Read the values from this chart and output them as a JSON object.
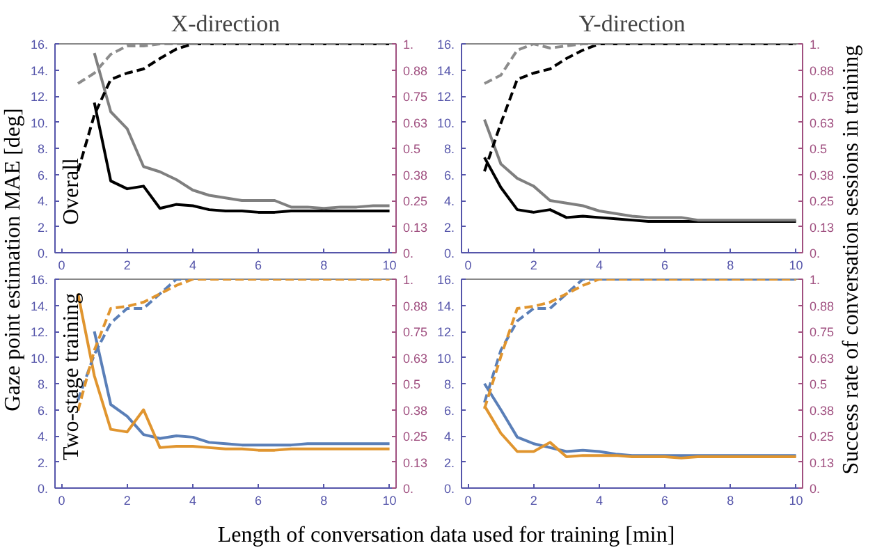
{
  "chart_data": [
    {
      "type": "line",
      "title": "X-direction",
      "ylabel": "Gaze point estimation MAE [deg]",
      "annotations": [
        "Overall"
      ],
      "x": [
        0.5,
        1,
        1.5,
        2,
        2.5,
        3,
        3.5,
        4,
        4.5,
        5,
        5.5,
        6,
        6.5,
        7,
        7.5,
        8,
        8.5,
        9,
        9.5,
        10
      ],
      "xlim": [
        -0.2,
        10.2
      ],
      "xticks": [
        0,
        2,
        4,
        6,
        8,
        10
      ],
      "ylim": [
        0,
        16
      ],
      "yticks": [
        {
          "value": 0,
          "label": "0."
        },
        {
          "value": 2,
          "label": "2."
        },
        {
          "value": 4,
          "label": "4."
        },
        {
          "value": 6,
          "label": "6."
        },
        {
          "value": 8,
          "label": "8."
        },
        {
          "value": 10,
          "label": "10."
        },
        {
          "value": 12,
          "label": "12."
        },
        {
          "value": 14,
          "label": "14."
        },
        {
          "value": 16,
          "label": "16."
        }
      ],
      "y2lim": [
        0,
        1
      ],
      "y2ticks": [
        {
          "value": 0,
          "label": "0."
        },
        {
          "value": 0.125,
          "label": "0.13"
        },
        0.25,
        {
          "value": 0.375,
          "label": "0.38"
        },
        0.5,
        {
          "value": 0.625,
          "label": "0.63"
        },
        0.75,
        {
          "value": 0.875,
          "label": "0.88"
        },
        {
          "value": 1,
          "label": "1."
        }
      ],
      "grid": false,
      "series": [
        {
          "color": "#000000",
          "line_style": "solid",
          "values": [
            null,
            11.5,
            5.5,
            4.9,
            5.1,
            3.4,
            3.7,
            3.6,
            3.3,
            3.2,
            3.2,
            3.1,
            3.1,
            3.2,
            3.2,
            3.2,
            3.2,
            3.2,
            3.2,
            3.2
          ]
        },
        {
          "color": "#7f7f7f",
          "line_style": "solid",
          "values": [
            null,
            15.3,
            10.8,
            9.5,
            6.6,
            6.2,
            5.6,
            4.8,
            4.4,
            4.2,
            4.0,
            4.0,
            4.0,
            3.5,
            3.5,
            3.4,
            3.5,
            3.5,
            3.6,
            3.6
          ]
        },
        {
          "color": "#000000",
          "line_style": "dashed",
          "axis": "y2",
          "values": [
            0.39,
            0.66,
            0.83,
            0.86,
            0.88,
            0.93,
            0.975,
            1,
            1,
            1,
            1,
            1,
            1,
            1,
            1,
            1,
            1,
            1,
            1,
            1
          ]
        },
        {
          "color": "#8c8c8c",
          "line_style": "dashed",
          "axis": "y2",
          "values": [
            0.81,
            0.86,
            0.95,
            0.99,
            0.99,
            1,
            1,
            1,
            1,
            1,
            1,
            1,
            1,
            1,
            1,
            1,
            1,
            1,
            1,
            1
          ]
        }
      ]
    },
    {
      "type": "line",
      "title": "Y-direction",
      "y2label": "Success rate of conversation sessions in training",
      "x": [
        0.5,
        1,
        1.5,
        2,
        2.5,
        3,
        3.5,
        4,
        4.5,
        5,
        5.5,
        6,
        6.5,
        7,
        7.5,
        8,
        8.5,
        9,
        9.5,
        10
      ],
      "xlim": [
        -0.2,
        10.2
      ],
      "xticks": [
        0,
        2,
        4,
        6,
        8,
        10
      ],
      "ylim": [
        0,
        16
      ],
      "yticks": [
        {
          "value": 0,
          "label": "0."
        },
        {
          "value": 2,
          "label": "2."
        },
        {
          "value": 4,
          "label": "4."
        },
        {
          "value": 6,
          "label": "6."
        },
        {
          "value": 8,
          "label": "8."
        },
        {
          "value": 10,
          "label": "10."
        },
        {
          "value": 12,
          "label": "12."
        },
        {
          "value": 14,
          "label": "14."
        },
        {
          "value": 16,
          "label": "16."
        }
      ],
      "y2lim": [
        0,
        1
      ],
      "y2ticks": [
        {
          "value": 0,
          "label": "0."
        },
        {
          "value": 0.125,
          "label": "0.13"
        },
        0.25,
        {
          "value": 0.375,
          "label": "0.38"
        },
        0.5,
        {
          "value": 0.625,
          "label": "0.63"
        },
        0.75,
        {
          "value": 0.875,
          "label": "0.88"
        },
        {
          "value": 1,
          "label": "1."
        }
      ],
      "grid": false,
      "series": [
        {
          "color": "#000000",
          "line_style": "solid",
          "values": [
            7.3,
            5.0,
            3.3,
            3.1,
            3.3,
            2.7,
            2.8,
            2.7,
            2.6,
            2.5,
            2.4,
            2.4,
            2.4,
            2.4,
            2.4,
            2.4,
            2.4,
            2.4,
            2.4,
            2.4
          ]
        },
        {
          "color": "#7f7f7f",
          "line_style": "solid",
          "values": [
            10.2,
            6.8,
            5.7,
            5.1,
            4.0,
            3.8,
            3.6,
            3.2,
            3.0,
            2.8,
            2.7,
            2.7,
            2.7,
            2.5,
            2.5,
            2.5,
            2.5,
            2.5,
            2.5,
            2.5
          ]
        },
        {
          "color": "#000000",
          "line_style": "dashed",
          "axis": "y2",
          "values": [
            0.39,
            0.62,
            0.83,
            0.86,
            0.88,
            0.93,
            0.97,
            1,
            1,
            1,
            1,
            1,
            1,
            1,
            1,
            1,
            1,
            1,
            1,
            1
          ]
        },
        {
          "color": "#8c8c8c",
          "line_style": "dashed",
          "axis": "y2",
          "values": [
            0.81,
            0.85,
            0.97,
            1,
            0.98,
            0.99,
            1,
            1,
            1,
            1,
            1,
            1,
            1,
            1,
            1,
            1,
            1,
            1,
            1,
            1
          ]
        }
      ]
    },
    {
      "type": "line",
      "xlabel": "Length of conversation data used for training [min]",
      "annotations": [
        "Two-stage training"
      ],
      "x": [
        0.5,
        1,
        1.5,
        2,
        2.5,
        3,
        3.5,
        4,
        4.5,
        5,
        5.5,
        6,
        6.5,
        7,
        7.5,
        8,
        8.5,
        9,
        9.5,
        10
      ],
      "xlim": [
        -0.2,
        10.2
      ],
      "xticks": [
        0,
        2,
        4,
        6,
        8,
        10
      ],
      "ylim": [
        0,
        16
      ],
      "yticks": [
        {
          "value": 0,
          "label": "0."
        },
        {
          "value": 2,
          "label": "2."
        },
        {
          "value": 4,
          "label": "4."
        },
        {
          "value": 6,
          "label": "6."
        },
        {
          "value": 8,
          "label": "8."
        },
        {
          "value": 10,
          "label": "10."
        },
        {
          "value": 12,
          "label": "12."
        },
        {
          "value": 14,
          "label": "14."
        },
        {
          "value": 16,
          "label": "16."
        }
      ],
      "y2lim": [
        0,
        1
      ],
      "y2ticks": [
        {
          "value": 0,
          "label": "0."
        },
        {
          "value": 0.125,
          "label": "0.13"
        },
        0.25,
        {
          "value": 0.375,
          "label": "0.38"
        },
        0.5,
        {
          "value": 0.625,
          "label": "0.63"
        },
        0.75,
        {
          "value": 0.875,
          "label": "0.88"
        },
        {
          "value": 1,
          "label": "1."
        }
      ],
      "grid": false,
      "series": [
        {
          "color": "#5a7fb8",
          "line_style": "solid",
          "values": [
            null,
            12.0,
            6.4,
            5.5,
            4.1,
            3.8,
            4.0,
            3.9,
            3.5,
            3.4,
            3.3,
            3.3,
            3.3,
            3.3,
            3.4,
            3.4,
            3.4,
            3.4,
            3.4,
            3.4
          ]
        },
        {
          "color": "#e0952f",
          "line_style": "solid",
          "values": [
            14.9,
            8.6,
            4.5,
            4.3,
            6.0,
            3.1,
            3.2,
            3.2,
            3.1,
            3.0,
            3.0,
            2.9,
            2.9,
            3.0,
            3.0,
            3.0,
            3.0,
            3.0,
            3.0,
            3.0
          ]
        },
        {
          "color": "#5a7fb8",
          "line_style": "dashed",
          "axis": "y2",
          "values": [
            0.42,
            0.64,
            0.79,
            0.86,
            0.86,
            0.93,
            1,
            1,
            null,
            null,
            null,
            null,
            null,
            null,
            null,
            null,
            null,
            null,
            null,
            null
          ]
        },
        {
          "color": "#e0952f",
          "line_style": "dashed",
          "axis": "y2",
          "values": [
            0.37,
            0.66,
            0.86,
            0.87,
            0.89,
            0.93,
            0.97,
            1,
            1,
            1,
            1,
            1,
            1,
            1,
            1,
            1,
            1,
            1,
            1,
            1
          ]
        }
      ]
    },
    {
      "type": "line",
      "x": [
        0.5,
        1,
        1.5,
        2,
        2.5,
        3,
        3.5,
        4,
        4.5,
        5,
        5.5,
        6,
        6.5,
        7,
        7.5,
        8,
        8.5,
        9,
        9.5,
        10
      ],
      "xlim": [
        -0.2,
        10.2
      ],
      "xticks": [
        0,
        2,
        4,
        6,
        8,
        10
      ],
      "ylim": [
        0,
        16
      ],
      "yticks": [
        {
          "value": 0,
          "label": "0."
        },
        {
          "value": 2,
          "label": "2."
        },
        {
          "value": 4,
          "label": "4."
        },
        {
          "value": 6,
          "label": "6."
        },
        {
          "value": 8,
          "label": "8."
        },
        {
          "value": 10,
          "label": "10."
        },
        {
          "value": 12,
          "label": "12."
        },
        {
          "value": 14,
          "label": "14."
        },
        {
          "value": 16,
          "label": "16."
        }
      ],
      "y2lim": [
        0,
        1
      ],
      "y2ticks": [
        {
          "value": 0,
          "label": "0."
        },
        {
          "value": 0.125,
          "label": "0.13"
        },
        0.25,
        {
          "value": 0.375,
          "label": "0.38"
        },
        0.5,
        {
          "value": 0.625,
          "label": "0.63"
        },
        0.75,
        {
          "value": 0.875,
          "label": "0.88"
        },
        {
          "value": 1,
          "label": "1."
        }
      ],
      "grid": false,
      "series": [
        {
          "color": "#5a7fb8",
          "line_style": "solid",
          "values": [
            8.0,
            6.0,
            3.9,
            3.4,
            3.1,
            2.8,
            2.9,
            2.8,
            2.6,
            2.5,
            2.5,
            2.5,
            2.5,
            2.5,
            2.5,
            2.5,
            2.5,
            2.5,
            2.5,
            2.5
          ]
        },
        {
          "color": "#e0952f",
          "line_style": "solid",
          "values": [
            6.3,
            4.2,
            2.8,
            2.8,
            3.5,
            2.4,
            2.5,
            2.5,
            2.5,
            2.4,
            2.4,
            2.4,
            2.3,
            2.4,
            2.4,
            2.4,
            2.4,
            2.4,
            2.4,
            2.4
          ]
        },
        {
          "color": "#5a7fb8",
          "line_style": "dashed",
          "axis": "y2",
          "values": [
            0.41,
            0.66,
            0.8,
            0.86,
            0.86,
            0.93,
            1,
            1,
            1,
            1,
            1,
            1,
            1,
            1,
            1,
            1,
            1,
            1,
            1,
            1
          ]
        },
        {
          "color": "#e0952f",
          "line_style": "dashed",
          "axis": "y2",
          "values": [
            0.38,
            0.63,
            0.86,
            0.87,
            0.89,
            0.93,
            0.97,
            1,
            1,
            1,
            1,
            1,
            1,
            1,
            1,
            1,
            1,
            1,
            1,
            1
          ]
        }
      ]
    }
  ]
}
